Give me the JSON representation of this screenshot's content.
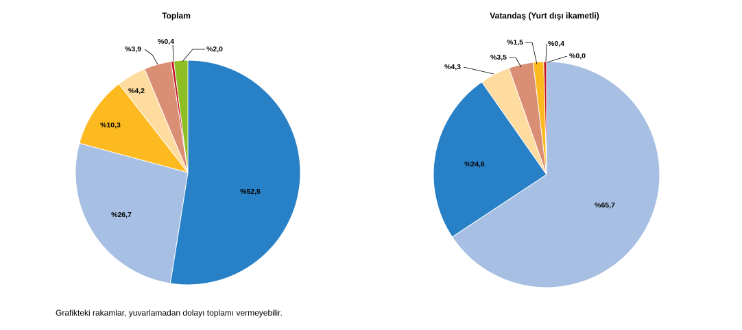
{
  "chart_data": [
    {
      "type": "pie",
      "title": "Toplam",
      "slices": [
        {
          "label": "%52,5",
          "value": 52.5,
          "color": "#2880C6"
        },
        {
          "label": "%26,7",
          "value": 26.7,
          "color": "#A6BFE3"
        },
        {
          "label": "%10,3",
          "value": 10.3,
          "color": "#FCBA20"
        },
        {
          "label": "%4,2",
          "value": 4.2,
          "color": "#FEDB9E"
        },
        {
          "label": "%3,9",
          "value": 3.9,
          "color": "#DA8E74"
        },
        {
          "label": "%0,4",
          "value": 0.4,
          "color": "#C0121D"
        },
        {
          "label": "%2,0",
          "value": 2.0,
          "color": "#8DBF24"
        }
      ]
    },
    {
      "type": "pie",
      "title": "Vatandaş (Yurt dışı ikametli)",
      "slices": [
        {
          "label": "%65,7",
          "value": 65.7,
          "color": "#A6BFE3"
        },
        {
          "label": "%24,6",
          "value": 24.6,
          "color": "#2880C6"
        },
        {
          "label": "%4,3",
          "value": 4.3,
          "color": "#FEDB9E"
        },
        {
          "label": "%3,5",
          "value": 3.5,
          "color": "#DA8E74"
        },
        {
          "label": "%1,5",
          "value": 1.5,
          "color": "#FCBA20"
        },
        {
          "label": "%0,4",
          "value": 0.4,
          "color": "#C0121D"
        },
        {
          "label": "%0,0",
          "value": 0.0,
          "color": "#8DBF24"
        }
      ]
    }
  ],
  "footnote": "Grafikteki rakamlar, yuvarlamadan dolayı toplamı vermeyebilir."
}
